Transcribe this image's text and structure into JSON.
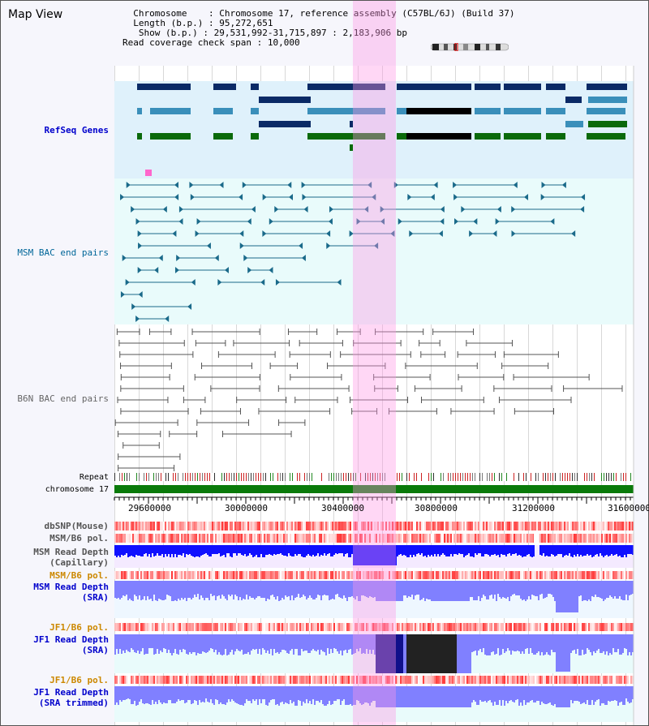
{
  "page": {
    "title": "Map View"
  },
  "info": {
    "chromosome_label": "Chromosome",
    "chromosome_value": "Chromosome 17, reference assembly (C57BL/6J) (Build 37)",
    "length_label": "Length (b.p.)",
    "length_value": "95,272,651",
    "show_label": "Show (b.p.)",
    "show_value": "29,531,992-31,715,897 : 2,183,906 bp",
    "coverage_label": "Read coverage check span",
    "coverage_value": "10,000"
  },
  "tracks": {
    "refseq": {
      "label": "RefSeq Genes",
      "color": "#0000cc"
    },
    "msm_bac": {
      "label": "MSM BAC end pairs",
      "color": "#006699"
    },
    "b6n_bac": {
      "label": "B6N BAC end pairs",
      "color": "#666666"
    },
    "repeat": {
      "label": "Repeat"
    },
    "chromosome": {
      "label": "chromosome 17"
    },
    "dbsnp": {
      "label": "dbSNP(Mouse)"
    },
    "msm_b6_pol_1": {
      "label": "MSM/B6 pol."
    },
    "msm_depth_cap": {
      "label_line1": "MSM Read Depth",
      "label_line2": "(Capillary)"
    },
    "msm_b6_pol_2": {
      "label": "MSM/B6 pol.",
      "color": "#cc8800"
    },
    "msm_depth_sra": {
      "label_line1": "MSM Read Depth",
      "label_line2": "(SRA)",
      "color": "#0000cc"
    },
    "jf1_b6_pol_1": {
      "label": "JF1/B6 pol.",
      "color": "#cc8800"
    },
    "jf1_depth_sra": {
      "label_line1": "JF1 Read Depth",
      "label_line2": "(SRA)",
      "color": "#0000cc"
    },
    "jf1_b6_pol_2": {
      "label": "JF1/B6 pol.",
      "color": "#cc8800"
    },
    "jf1_depth_trim": {
      "label_line1": "JF1 Read Depth",
      "label_line2": "(SRA trimmed)",
      "color": "#0000cc"
    }
  },
  "axis": {
    "ticks": [
      "29600000",
      "30000000",
      "30400000",
      "30800000",
      "31200000",
      "31600000"
    ]
  },
  "colors": {
    "refseq_dark": "#0a2a66",
    "refseq_mid": "#3a8fba",
    "refseq_green": "#0a6a0a",
    "highlight": "#ff96e6",
    "depth_blue": "#1010ff",
    "depth_light": "#8080ff"
  }
}
